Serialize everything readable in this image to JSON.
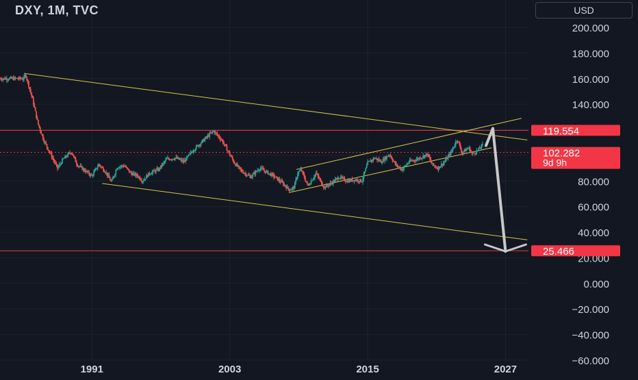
{
  "header": {
    "title": "DXY, 1M, TVC",
    "currency": "USD"
  },
  "colors": {
    "background": "#131722",
    "grid": "#1e222d",
    "text": "#d1d4dc",
    "up": "#26a69a",
    "down": "#ef5350",
    "trendline": "#d4c94a",
    "hline": "#f23645",
    "arrow": "#c8c8c8"
  },
  "chart_data": {
    "type": "candlestick",
    "symbol": "DXY",
    "interval": "1M",
    "source": "TVC",
    "y_ticks": [
      "200.000",
      "180.000",
      "160.000",
      "140.000",
      "120.000",
      "100.000",
      "80.000",
      "60.000",
      "40.000",
      "20.000",
      "0.000",
      "−20.000",
      "−40.000",
      "−60.000"
    ],
    "y_tick_values": [
      200,
      180,
      160,
      140,
      120,
      100,
      80,
      60,
      40,
      20,
      0,
      -20,
      -40,
      -60
    ],
    "x_ticks": [
      "1991",
      "2003",
      "2015",
      "2027"
    ],
    "x_tick_values": [
      1991,
      2003,
      2015,
      2027
    ],
    "ylim": [
      -60,
      200
    ],
    "xlim": [
      1983,
      2029
    ],
    "price_series": [
      [
        1985.1,
        160
      ],
      [
        1985.2,
        164
      ],
      [
        1985.8,
        145
      ],
      [
        1986.3,
        125
      ],
      [
        1986.8,
        112
      ],
      [
        1987.4,
        101
      ],
      [
        1988.0,
        90
      ],
      [
        1988.5,
        97
      ],
      [
        1989.2,
        103
      ],
      [
        1989.7,
        93
      ],
      [
        1990.4,
        88
      ],
      [
        1991.0,
        84
      ],
      [
        1991.6,
        93
      ],
      [
        1992.2,
        87
      ],
      [
        1992.7,
        79
      ],
      [
        1993.2,
        91
      ],
      [
        1993.8,
        92
      ],
      [
        1994.4,
        86
      ],
      [
        1995.0,
        84
      ],
      [
        1995.4,
        80
      ],
      [
        1996.0,
        86
      ],
      [
        1996.8,
        89
      ],
      [
        1997.5,
        97
      ],
      [
        1998.3,
        98
      ],
      [
        1999.0,
        95
      ],
      [
        1999.8,
        104
      ],
      [
        2000.5,
        110
      ],
      [
        2001.2,
        116
      ],
      [
        2001.6,
        119
      ],
      [
        2002.3,
        112
      ],
      [
        2002.8,
        104
      ],
      [
        2003.4,
        94
      ],
      [
        2004.0,
        88
      ],
      [
        2004.8,
        83
      ],
      [
        2005.6,
        90
      ],
      [
        2006.2,
        87
      ],
      [
        2006.8,
        84
      ],
      [
        2007.5,
        79
      ],
      [
        2008.2,
        73
      ],
      [
        2008.6,
        75
      ],
      [
        2008.9,
        86
      ],
      [
        2009.2,
        89
      ],
      [
        2009.8,
        76
      ],
      [
        2010.5,
        86
      ],
      [
        2011.2,
        75
      ],
      [
        2011.8,
        78
      ],
      [
        2012.5,
        83
      ],
      [
        2013.2,
        80
      ],
      [
        2013.9,
        81
      ],
      [
        2014.5,
        80
      ],
      [
        2015.0,
        94
      ],
      [
        2015.6,
        98
      ],
      [
        2016.2,
        95
      ],
      [
        2016.9,
        101
      ],
      [
        2017.4,
        93
      ],
      [
        2018.0,
        89
      ],
      [
        2018.6,
        95
      ],
      [
        2019.3,
        97
      ],
      [
        2020.2,
        101
      ],
      [
        2020.6,
        93
      ],
      [
        2021.1,
        90
      ],
      [
        2021.7,
        95
      ],
      [
        2022.3,
        103
      ],
      [
        2022.8,
        113
      ],
      [
        2023.2,
        102
      ],
      [
        2023.8,
        106
      ],
      [
        2024.1,
        101
      ],
      [
        2024.6,
        104
      ],
      [
        2025.0,
        108
      ]
    ],
    "annotations": {
      "horizontal_lines": [
        {
          "value": 119.554,
          "label": "119.554"
        },
        {
          "value": 25.466,
          "label": "25.466"
        }
      ],
      "trendlines": [
        {
          "from": [
            1985.1,
            164
          ],
          "to": [
            2028.9,
            112
          ]
        },
        {
          "from": [
            1991.9,
            78
          ],
          "to": [
            2028.9,
            34
          ]
        },
        {
          "from": [
            2008.8,
            89
          ],
          "to": [
            2028.4,
            129
          ]
        },
        {
          "from": [
            2008.2,
            71
          ],
          "to": [
            2025.8,
            106
          ]
        }
      ],
      "projection_arrow": {
        "from": [
          2025.9,
          121
        ],
        "to": [
          2027.0,
          25
        ]
      }
    },
    "last_price": {
      "value": 102.282,
      "label": "102.282",
      "countdown": "9d 9h"
    }
  }
}
